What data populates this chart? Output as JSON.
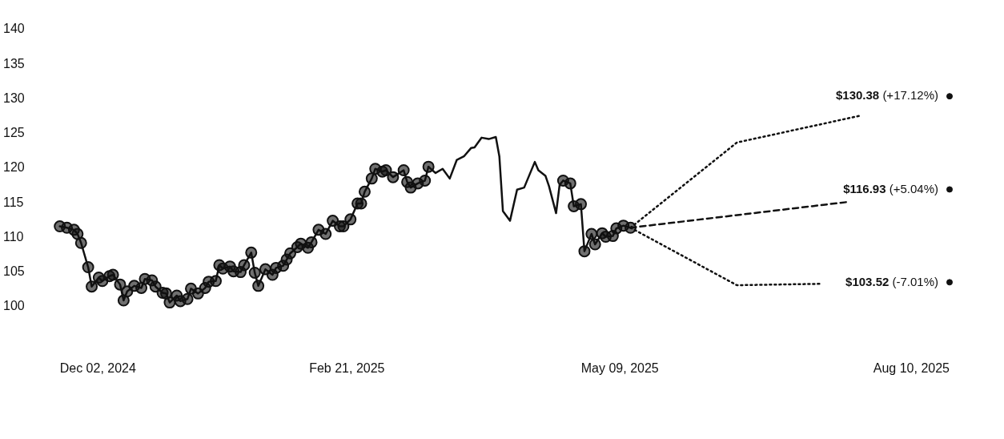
{
  "chart_data": {
    "type": "line",
    "xlim": [
      "2024-12-02",
      "2025-08-10"
    ],
    "xticks": [
      {
        "value": "2024-12-02",
        "label": "Dec 02, 2024"
      },
      {
        "value": "2025-02-21",
        "label": "Feb 21, 2025"
      },
      {
        "value": "2025-05-09",
        "label": "May 09, 2025"
      },
      {
        "value": "2025-08-10",
        "label": "Aug 10, 2025"
      }
    ],
    "ylim": [
      100,
      140
    ],
    "yticks": [
      100,
      105,
      110,
      115,
      120,
      125,
      130,
      135,
      140
    ],
    "grid": false,
    "legend": false,
    "series": [
      {
        "color": "#111111",
        "marker": "circle",
        "line_style": "solid",
        "x": [
          "2024-12-02",
          "2024-12-04",
          "2024-12-06",
          "2024-12-07",
          "2024-12-08",
          "2024-12-10",
          "2024-12-11",
          "2024-12-13",
          "2024-12-14",
          "2024-12-16",
          "2024-12-17",
          "2024-12-19",
          "2024-12-20",
          "2024-12-21",
          "2024-12-23",
          "2024-12-25",
          "2024-12-26",
          "2024-12-28",
          "2024-12-29",
          "2024-12-31",
          "2025-01-01",
          "2025-01-02",
          "2025-01-04",
          "2025-01-05",
          "2025-01-07",
          "2025-01-08",
          "2025-01-10",
          "2025-01-12",
          "2025-01-13",
          "2025-01-15",
          "2025-01-16",
          "2025-01-17",
          "2025-01-19",
          "2025-01-20",
          "2025-01-22",
          "2025-01-23",
          "2025-01-25",
          "2025-01-26",
          "2025-01-27",
          "2025-01-29",
          "2025-01-31",
          "2025-02-01",
          "2025-02-03",
          "2025-02-04",
          "2025-02-05",
          "2025-02-07",
          "2025-02-08",
          "2025-02-10",
          "2025-02-11",
          "2025-02-13",
          "2025-02-15",
          "2025-02-17",
          "2025-02-19",
          "2025-02-20",
          "2025-02-22",
          "2025-02-24",
          "2025-02-25",
          "2025-02-26",
          "2025-02-28",
          "2025-03-01",
          "2025-03-03",
          "2025-03-04",
          "2025-03-06",
          "2025-03-09",
          "2025-03-10",
          "2025-03-11",
          "2025-03-13",
          "2025-03-15",
          "2025-03-16"
        ],
        "values": [
          111.6,
          111.4,
          111.1,
          110.5,
          109.2,
          105.7,
          102.9,
          104.2,
          103.7,
          104.4,
          104.6,
          103.2,
          100.9,
          102.2,
          103.0,
          102.7,
          104.0,
          103.8,
          102.9,
          102.0,
          101.9,
          100.6,
          101.6,
          100.8,
          101.1,
          102.6,
          101.9,
          102.7,
          103.6,
          103.7,
          106.0,
          105.5,
          105.8,
          105.1,
          105.0,
          106.0,
          107.8,
          104.9,
          103.0,
          105.4,
          104.6,
          105.6,
          105.9,
          106.8,
          107.7,
          108.6,
          109.1,
          108.5,
          109.3,
          111.1,
          110.5,
          112.4,
          111.6,
          111.6,
          112.6,
          114.9,
          114.9,
          116.6,
          118.5,
          119.9,
          119.5,
          119.7,
          118.7,
          119.7,
          118.0,
          117.2,
          117.8,
          118.2,
          120.2
        ]
      },
      {
        "color": "#111111",
        "marker": "none",
        "line_style": "solid",
        "x": [
          "2025-03-16",
          "2025-03-18",
          "2025-03-20",
          "2025-03-22",
          "2025-03-24",
          "2025-03-26",
          "2025-03-28",
          "2025-03-29",
          "2025-03-31",
          "2025-04-02",
          "2025-04-04",
          "2025-04-05",
          "2025-04-06",
          "2025-04-08",
          "2025-04-10",
          "2025-04-12",
          "2025-04-15",
          "2025-04-16",
          "2025-04-18",
          "2025-04-19",
          "2025-04-21",
          "2025-04-22",
          "2025-04-23"
        ],
        "values": [
          120.2,
          119.3,
          119.9,
          118.5,
          121.2,
          121.7,
          122.9,
          123.0,
          124.4,
          124.2,
          124.5,
          121.7,
          113.8,
          112.4,
          116.9,
          117.2,
          120.9,
          119.7,
          118.9,
          117.4,
          113.5,
          117.6,
          118.2
        ]
      },
      {
        "color": "#111111",
        "marker": "circle",
        "line_style": "solid",
        "x": [
          "2025-04-23",
          "2025-04-25",
          "2025-04-26",
          "2025-04-28",
          "2025-04-29",
          "2025-05-01",
          "2025-05-02",
          "2025-05-04",
          "2025-05-05",
          "2025-05-07",
          "2025-05-08",
          "2025-05-10",
          "2025-05-12"
        ],
        "values": [
          118.2,
          117.8,
          114.5,
          114.8,
          108.0,
          110.5,
          109.0,
          110.6,
          110.1,
          110.2,
          111.3,
          111.7,
          111.4
        ]
      },
      {
        "color": "#111111",
        "marker": "none",
        "line_style": "dotted",
        "x": [
          "2025-05-12",
          "2025-06-11",
          "2025-07-16"
        ],
        "values": [
          111.4,
          123.7,
          127.6
        ]
      },
      {
        "color": "#111111",
        "marker": "none",
        "line_style": "dashed",
        "x": [
          "2025-05-12",
          "2025-07-12"
        ],
        "values": [
          111.4,
          115.1
        ]
      },
      {
        "color": "#111111",
        "marker": "none",
        "line_style": "dotted",
        "x": [
          "2025-05-12",
          "2025-06-11",
          "2025-07-05"
        ],
        "values": [
          111.4,
          103.1,
          103.3
        ]
      },
      {
        "type": "scatter",
        "color": "#111111",
        "marker": "circle",
        "x": [
          "2025-08-10",
          "2025-08-10",
          "2025-08-10"
        ],
        "values": [
          130.38,
          116.93,
          103.52
        ],
        "value_labels": [
          "$130.38 (+17.12%)",
          "$116.93 (+5.04%)",
          "$103.52 (-7.01%)"
        ]
      }
    ]
  }
}
